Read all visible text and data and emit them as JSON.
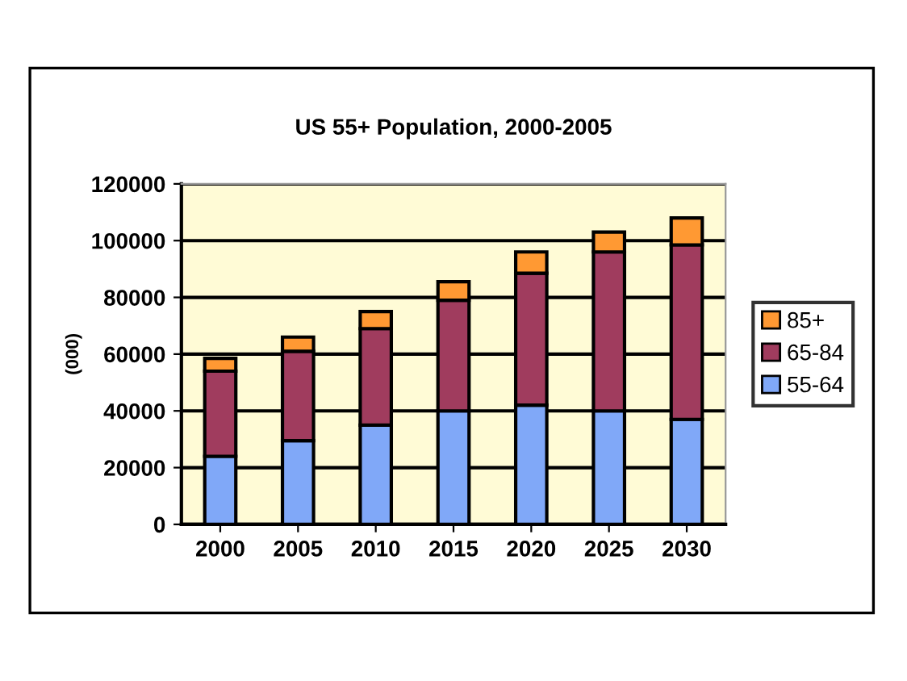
{
  "chart_data": {
    "type": "bar",
    "title": "US 55+ Population, 2000-2005",
    "ylabel": "(000)",
    "categories": [
      "2000",
      "2005",
      "2010",
      "2015",
      "2020",
      "2025",
      "2030"
    ],
    "stacked": true,
    "series": [
      {
        "name": "55-64",
        "color": "#80a8f8",
        "values": [
          24000,
          29500,
          35000,
          40000,
          42000,
          40000,
          37000
        ]
      },
      {
        "name": "65-84",
        "color": "#a03c5e",
        "values": [
          30000,
          31500,
          34000,
          39000,
          46500,
          56000,
          61500
        ]
      },
      {
        "name": "85+",
        "color": "#ff9933",
        "values": [
          4500,
          5000,
          6000,
          6500,
          7500,
          7000,
          9500
        ]
      }
    ],
    "ylim": [
      0,
      120000
    ],
    "yticks": [
      0,
      20000,
      40000,
      60000,
      80000,
      100000,
      120000
    ],
    "grid": "y",
    "legend": "right"
  }
}
